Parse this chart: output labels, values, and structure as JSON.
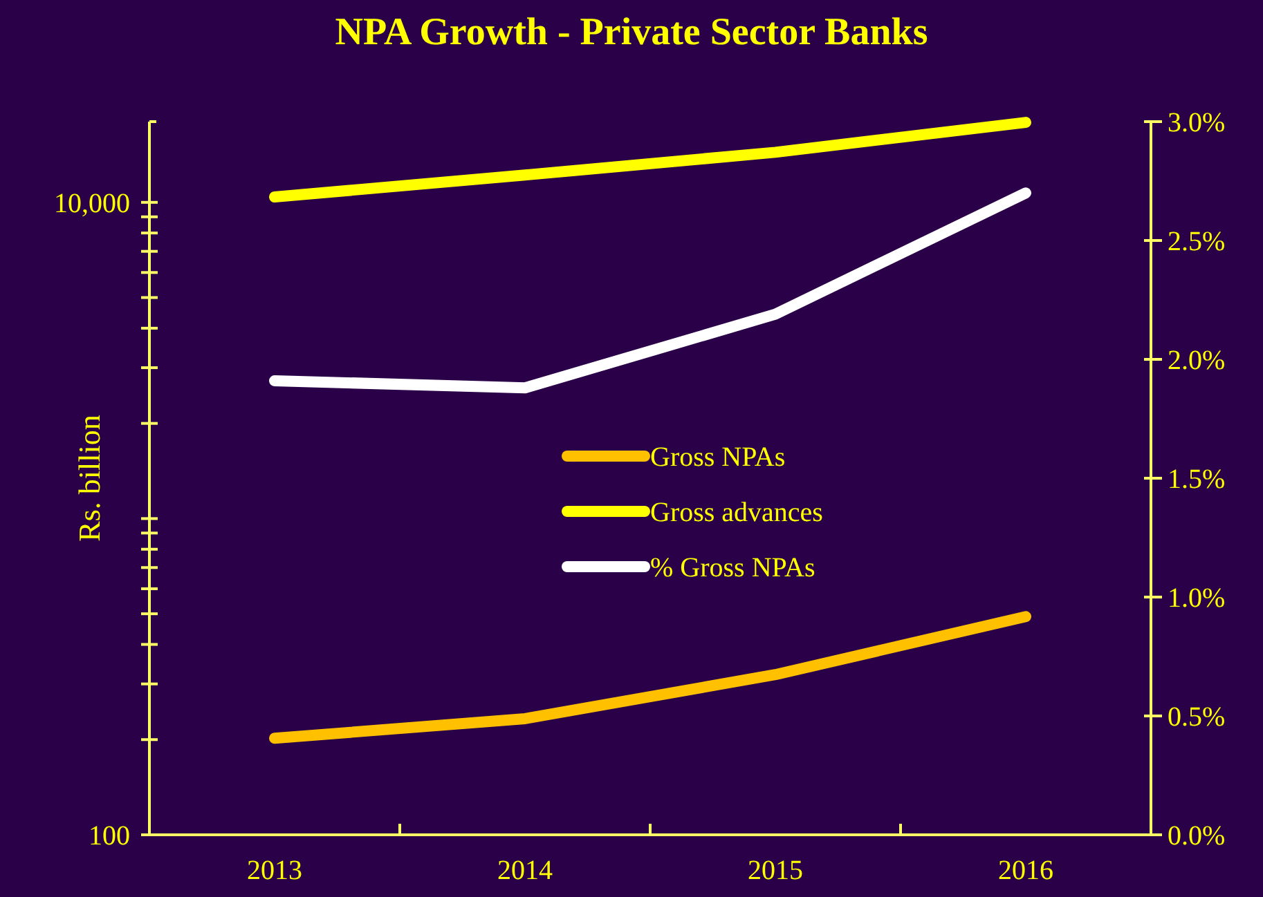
{
  "chart_data": {
    "type": "line",
    "title": "NPA Growth - Private Sector Banks",
    "ylabel": "Rs. billion",
    "categories": [
      "2013",
      "2014",
      "2015",
      "2016"
    ],
    "series": [
      {
        "name": "Gross NPAs",
        "color": "#ffc000",
        "values": [
          202,
          233,
          321,
          490
        ]
      },
      {
        "name": "Gross advances",
        "color": "#ffff00",
        "values": [
          10400,
          12200,
          14400,
          17900
        ]
      },
      {
        "name": "% Gross NPAs",
        "color": "#ffffff",
        "axis": "y2",
        "values": [
          1.91,
          1.88,
          2.19,
          2.7
        ]
      }
    ],
    "log": "y",
    "ylim": [
      100,
      18000
    ],
    "yticks": [
      {
        "value": 100,
        "label": "100"
      },
      {
        "value": 200,
        "label": null
      },
      {
        "value": 300,
        "label": null
      },
      {
        "value": 400,
        "label": null
      },
      {
        "value": 500,
        "label": null
      },
      {
        "value": 600,
        "label": null
      },
      {
        "value": 700,
        "label": null
      },
      {
        "value": 800,
        "label": null
      },
      {
        "value": 900,
        "label": null
      },
      {
        "value": 1000,
        "label": null
      },
      {
        "value": 2000,
        "label": null
      },
      {
        "value": 3000,
        "label": null
      },
      {
        "value": 4000,
        "label": null
      },
      {
        "value": 5000,
        "label": null
      },
      {
        "value": 6000,
        "label": null
      },
      {
        "value": 7000,
        "label": null
      },
      {
        "value": 8000,
        "label": null
      },
      {
        "value": 9000,
        "label": null
      },
      {
        "value": 10000,
        "label": "10,000"
      }
    ],
    "y2lim": [
      0,
      3
    ],
    "y2ticks": [
      {
        "value": 0,
        "label": "0.0%"
      },
      {
        "value": 0.5,
        "label": "0.5%"
      },
      {
        "value": 1,
        "label": "1.0%"
      },
      {
        "value": 1.5,
        "label": "1.5%"
      },
      {
        "value": 2,
        "label": "2.0%"
      },
      {
        "value": 2.5,
        "label": "2.5%"
      },
      {
        "value": 3,
        "label": "3.0%"
      }
    ],
    "grid": false,
    "legend": "center",
    "marker": "none",
    "line_style": "solid"
  }
}
